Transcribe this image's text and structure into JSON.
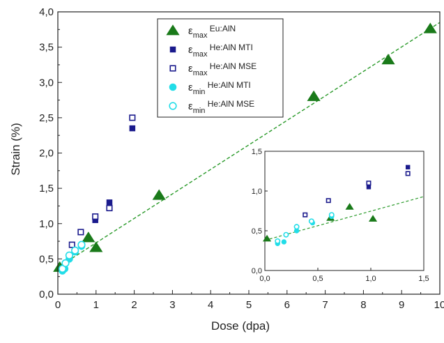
{
  "chart_data": [
    {
      "type": "scatter",
      "xlabel": "Dose (dpa)",
      "ylabel": "Strain (%)",
      "xlim": [
        0,
        10
      ],
      "ylim": [
        0,
        4
      ],
      "xticks": [
        "0",
        "1",
        "2",
        "3",
        "4",
        "5",
        "6",
        "7",
        "8",
        "9",
        "10"
      ],
      "yticks": [
        "0,0",
        "0,5",
        "1,0",
        "1,5",
        "2,0",
        "2,5",
        "3,0",
        "3,5",
        "4,0"
      ],
      "legend_position": "top-center",
      "series": [
        {
          "name": "εmax Eu:AlN",
          "sym": "ε",
          "sub": "max",
          "label": " Eu:AlN",
          "marker": "triangle",
          "filled": true,
          "color": "#1a7a1a",
          "points": [
            [
              0.05,
              0.38
            ],
            [
              0.8,
              0.8
            ],
            [
              1.0,
              0.66
            ],
            [
              2.65,
              1.4
            ],
            [
              6.7,
              2.8
            ],
            [
              8.65,
              3.32
            ],
            [
              9.75,
              3.76
            ]
          ]
        },
        {
          "name": "εmax He:AlN MTI",
          "sym": "ε",
          "sub": "max",
          "label": " He:AlN MTI",
          "marker": "square",
          "filled": true,
          "color": "#1a1a8c",
          "points": [
            [
              0.98,
              1.05
            ],
            [
              1.35,
              1.3
            ],
            [
              1.95,
              2.35
            ]
          ]
        },
        {
          "name": "εmax He:AlN MSE",
          "sym": "ε",
          "sub": "max",
          "label": " He:AlN MSE",
          "marker": "square",
          "filled": false,
          "color": "#1a1a8c",
          "points": [
            [
              0.37,
              0.7
            ],
            [
              0.6,
              0.88
            ],
            [
              0.98,
              1.1
            ],
            [
              1.35,
              1.22
            ],
            [
              1.95,
              2.5
            ]
          ]
        },
        {
          "name": "εmin He:AlN MTI",
          "sym": "ε",
          "sub": "min",
          "label": " He:AlN MTI",
          "marker": "circle",
          "filled": true,
          "color": "#22dde8",
          "points": [
            [
              0.12,
              0.33
            ],
            [
              0.15,
              0.35
            ],
            [
              0.18,
              0.36
            ],
            [
              0.3,
              0.5
            ],
            [
              0.45,
              0.6
            ],
            [
              0.62,
              0.68
            ]
          ]
        },
        {
          "name": "εmin He:AlN MSE",
          "sym": "ε",
          "sub": "min",
          "label": " He:AlN MSE",
          "marker": "circle",
          "filled": false,
          "color": "#22dde8",
          "points": [
            [
              0.12,
              0.36
            ],
            [
              0.2,
              0.44
            ],
            [
              0.3,
              0.55
            ],
            [
              0.45,
              0.62
            ],
            [
              0.62,
              0.7
            ]
          ]
        }
      ],
      "trend_line": {
        "points": [
          [
            0,
            0.38
          ],
          [
            10,
            3.85
          ]
        ],
        "style": "dashed",
        "color": "#2a9a2a"
      }
    },
    {
      "type": "scatter",
      "inset": true,
      "xlim": [
        0,
        1.5
      ],
      "ylim": [
        0,
        1.5
      ],
      "xticks": [
        "0,0",
        "0,5",
        "1,0",
        "1,5"
      ],
      "yticks": [
        "0,0",
        "0,5",
        "1,0",
        "1,5"
      ],
      "series": [
        {
          "name": "εmax Eu:AlN",
          "marker": "triangle",
          "filled": true,
          "color": "#1a7a1a",
          "points": [
            [
              0.02,
              0.4
            ],
            [
              0.62,
              0.66
            ],
            [
              0.8,
              0.8
            ],
            [
              1.02,
              0.65
            ]
          ]
        },
        {
          "name": "εmax He:AlN MTI",
          "marker": "square",
          "filled": true,
          "color": "#1a1a8c",
          "points": [
            [
              0.98,
              1.05
            ],
            [
              1.35,
              1.3
            ]
          ]
        },
        {
          "name": "εmax He:AlN MSE",
          "marker": "square",
          "filled": false,
          "color": "#1a1a8c",
          "points": [
            [
              0.38,
              0.7
            ],
            [
              0.6,
              0.88
            ],
            [
              0.98,
              1.1
            ],
            [
              1.35,
              1.22
            ]
          ]
        },
        {
          "name": "εmin He:AlN MTI",
          "marker": "circle",
          "filled": true,
          "color": "#22dde8",
          "points": [
            [
              0.12,
              0.34
            ],
            [
              0.18,
              0.36
            ],
            [
              0.3,
              0.5
            ],
            [
              0.45,
              0.6
            ],
            [
              0.63,
              0.68
            ]
          ]
        },
        {
          "name": "εmin He:AlN MSE",
          "marker": "circle",
          "filled": false,
          "color": "#22dde8",
          "points": [
            [
              0.12,
              0.37
            ],
            [
              0.2,
              0.45
            ],
            [
              0.3,
              0.55
            ],
            [
              0.44,
              0.62
            ],
            [
              0.63,
              0.7
            ]
          ]
        }
      ],
      "trend_line": {
        "points": [
          [
            0,
            0.38
          ],
          [
            1.5,
            0.93
          ]
        ],
        "style": "dashed",
        "color": "#2a9a2a"
      }
    }
  ]
}
